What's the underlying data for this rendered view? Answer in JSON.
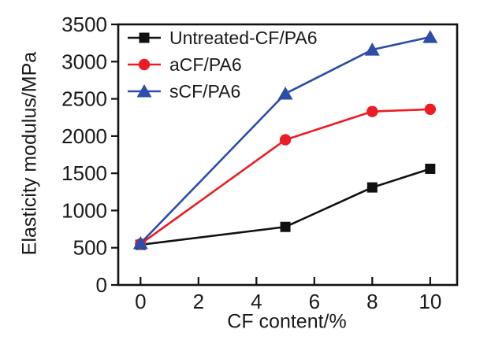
{
  "chart_data": {
    "type": "line",
    "title": "",
    "xlabel": "CF content/%",
    "ylabel": "Elasticity modulus/MPa",
    "x": [
      0,
      5,
      8,
      10
    ],
    "xticks": [
      0,
      2,
      4,
      6,
      8,
      10
    ],
    "yticks": [
      0,
      500,
      1000,
      1500,
      2000,
      2500,
      3000,
      3500
    ],
    "xlim": [
      -0.77,
      10.93
    ],
    "ylim": [
      0,
      3500
    ],
    "grid": false,
    "legend_position": "top-left",
    "series": [
      {
        "name": "Untreated-CF/PA6",
        "marker": "square",
        "color": "#111111",
        "values": [
          540,
          780,
          1310,
          1560
        ]
      },
      {
        "name": "aCF/PA6",
        "marker": "circle",
        "color": "#ec1c24",
        "values": [
          550,
          1950,
          2330,
          2360
        ]
      },
      {
        "name": "sCF/PA6",
        "marker": "triangle",
        "color": "#2d4da8",
        "values": [
          560,
          2570,
          3160,
          3330
        ]
      }
    ]
  },
  "colors": {
    "axis": "#111111",
    "text": "#1a1a1a",
    "background": "#ffffff"
  }
}
